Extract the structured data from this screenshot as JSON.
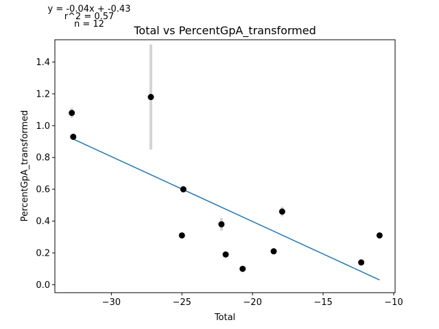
{
  "chart_data": {
    "type": "scatter",
    "title": "Total vs PercentGpA_transformed",
    "xlabel": "Total",
    "ylabel": "PercentGpA_transformed",
    "xlim": [
      -34,
      -9.9
    ],
    "ylim": [
      -0.05,
      1.54
    ],
    "xticks": [
      -30,
      -25,
      -20,
      -15,
      -10
    ],
    "xtick_labels": [
      "−30",
      "−25",
      "−20",
      "−15",
      "−10"
    ],
    "yticks": [
      0.0,
      0.2,
      0.4,
      0.6,
      0.8,
      1.0,
      1.2,
      1.4
    ],
    "ytick_labels": [
      "0.0",
      "0.2",
      "0.4",
      "0.6",
      "0.8",
      "1.0",
      "1.2",
      "1.4"
    ],
    "grid": false,
    "annotations": [
      "y = -0.04x + -0.43",
      "r^2 = 0.57",
      "n = 12"
    ],
    "point_color": "#000000",
    "errorbar_color": "#d3d3d3",
    "fit_color": "#1f77b4",
    "points": [
      {
        "x": -32.8,
        "y": 1.08,
        "err": 0.03
      },
      {
        "x": -32.7,
        "y": 0.93,
        "err": 0.02
      },
      {
        "x": -27.2,
        "y": 1.18,
        "err": 0.33
      },
      {
        "x": -24.9,
        "y": 0.6,
        "err": 0.02
      },
      {
        "x": -25.0,
        "y": 0.31,
        "err": 0.0
      },
      {
        "x": -22.2,
        "y": 0.38,
        "err": 0.04
      },
      {
        "x": -21.9,
        "y": 0.19,
        "err": 0.0
      },
      {
        "x": -20.7,
        "y": 0.1,
        "err": 0.0
      },
      {
        "x": -18.5,
        "y": 0.21,
        "err": 0.0
      },
      {
        "x": -17.9,
        "y": 0.46,
        "err": 0.03
      },
      {
        "x": -12.3,
        "y": 0.14,
        "err": 0.0
      },
      {
        "x": -11.0,
        "y": 0.31,
        "err": 0.0
      }
    ],
    "fit_line": {
      "x": [
        -32.8,
        -11.0
      ],
      "y": [
        0.92,
        0.03
      ]
    }
  }
}
